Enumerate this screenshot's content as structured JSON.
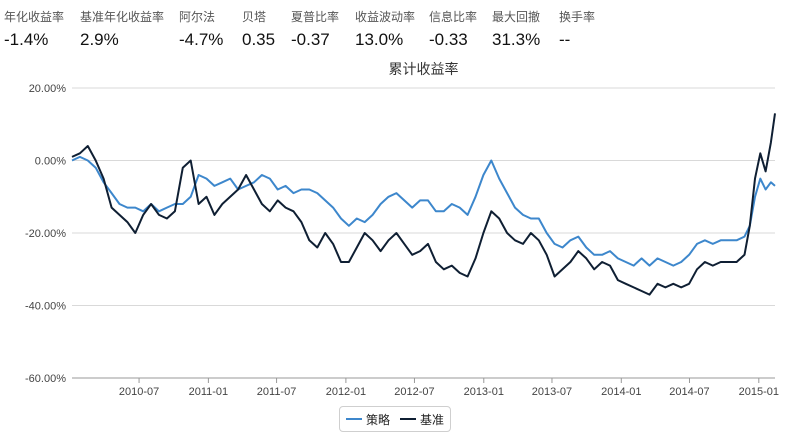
{
  "stats": [
    {
      "label": "年化收益率",
      "value": "-1.4%"
    },
    {
      "label": "基准年化收益率",
      "value": "2.9%"
    },
    {
      "label": "阿尔法",
      "value": "-4.7%"
    },
    {
      "label": "贝塔",
      "value": "0.35"
    },
    {
      "label": "夏普比率",
      "value": "-0.37"
    },
    {
      "label": "收益波动率",
      "value": "13.0%"
    },
    {
      "label": "信息比率",
      "value": "-0.33"
    },
    {
      "label": "最大回撤",
      "value": "31.3%"
    },
    {
      "label": "换手率",
      "value": "--"
    }
  ],
  "colors": {
    "strategy": "#3d87cc",
    "benchmark": "#0f1f33",
    "grid": "#d9d9d9",
    "axis": "#333333"
  },
  "chart_data": {
    "type": "line",
    "title": "累计收益率",
    "xlabel": "",
    "ylabel": "",
    "ylim": [
      -0.6,
      0.2
    ],
    "yticks": [
      0.2,
      0,
      -0.2,
      -0.4,
      -0.6
    ],
    "ytick_labels": [
      "20.00%",
      "0.00%",
      "-20.00%",
      "-40.00%",
      "-60.00%"
    ],
    "xlim": [
      "2010-01-04",
      "2015-02-13"
    ],
    "xtick_labels": [
      "2010-07",
      "2011-01",
      "2011-07",
      "2012-01",
      "2012-07",
      "2013-01",
      "2013-07",
      "2014-01",
      "2014-07",
      "2015-01"
    ],
    "grid": "horizontal",
    "legend_position": "bottom-center",
    "series": [
      {
        "name": "策略",
        "color": "#3d87cc",
        "points": [
          [
            "2010-01-04",
            0.0
          ],
          [
            "2010-01-25",
            0.01
          ],
          [
            "2010-02-15",
            0.0
          ],
          [
            "2010-03-08",
            -0.02
          ],
          [
            "2010-03-29",
            -0.06
          ],
          [
            "2010-04-19",
            -0.09
          ],
          [
            "2010-05-10",
            -0.12
          ],
          [
            "2010-05-31",
            -0.13
          ],
          [
            "2010-06-21",
            -0.13
          ],
          [
            "2010-07-12",
            -0.14
          ],
          [
            "2010-08-02",
            -0.12
          ],
          [
            "2010-08-23",
            -0.14
          ],
          [
            "2010-09-13",
            -0.13
          ],
          [
            "2010-10-04",
            -0.12
          ],
          [
            "2010-10-25",
            -0.12
          ],
          [
            "2010-11-15",
            -0.1
          ],
          [
            "2010-12-06",
            -0.04
          ],
          [
            "2010-12-27",
            -0.05
          ],
          [
            "2011-01-17",
            -0.07
          ],
          [
            "2011-02-07",
            -0.06
          ],
          [
            "2011-02-28",
            -0.05
          ],
          [
            "2011-03-21",
            -0.08
          ],
          [
            "2011-04-11",
            -0.07
          ],
          [
            "2011-05-02",
            -0.06
          ],
          [
            "2011-05-23",
            -0.04
          ],
          [
            "2011-06-13",
            -0.05
          ],
          [
            "2011-07-04",
            -0.08
          ],
          [
            "2011-07-25",
            -0.07
          ],
          [
            "2011-08-15",
            -0.09
          ],
          [
            "2011-09-05",
            -0.08
          ],
          [
            "2011-09-26",
            -0.08
          ],
          [
            "2011-10-17",
            -0.09
          ],
          [
            "2011-11-07",
            -0.11
          ],
          [
            "2011-11-28",
            -0.13
          ],
          [
            "2011-12-19",
            -0.16
          ],
          [
            "2012-01-09",
            -0.18
          ],
          [
            "2012-01-30",
            -0.16
          ],
          [
            "2012-02-20",
            -0.17
          ],
          [
            "2012-03-12",
            -0.15
          ],
          [
            "2012-04-02",
            -0.12
          ],
          [
            "2012-04-23",
            -0.1
          ],
          [
            "2012-05-14",
            -0.09
          ],
          [
            "2012-06-04",
            -0.11
          ],
          [
            "2012-06-25",
            -0.13
          ],
          [
            "2012-07-16",
            -0.11
          ],
          [
            "2012-08-06",
            -0.11
          ],
          [
            "2012-08-27",
            -0.14
          ],
          [
            "2012-09-17",
            -0.14
          ],
          [
            "2012-10-08",
            -0.12
          ],
          [
            "2012-10-29",
            -0.13
          ],
          [
            "2012-11-19",
            -0.15
          ],
          [
            "2012-12-10",
            -0.1
          ],
          [
            "2012-12-31",
            -0.04
          ],
          [
            "2013-01-21",
            0.0
          ],
          [
            "2013-02-11",
            -0.05
          ],
          [
            "2013-03-04",
            -0.09
          ],
          [
            "2013-03-25",
            -0.13
          ],
          [
            "2013-04-15",
            -0.15
          ],
          [
            "2013-05-06",
            -0.16
          ],
          [
            "2013-05-27",
            -0.16
          ],
          [
            "2013-06-17",
            -0.2
          ],
          [
            "2013-07-08",
            -0.23
          ],
          [
            "2013-07-29",
            -0.24
          ],
          [
            "2013-08-19",
            -0.22
          ],
          [
            "2013-09-09",
            -0.21
          ],
          [
            "2013-09-30",
            -0.24
          ],
          [
            "2013-10-21",
            -0.26
          ],
          [
            "2013-11-11",
            -0.26
          ],
          [
            "2013-12-02",
            -0.25
          ],
          [
            "2013-12-23",
            -0.27
          ],
          [
            "2014-01-13",
            -0.28
          ],
          [
            "2014-02-03",
            -0.29
          ],
          [
            "2014-02-24",
            -0.27
          ],
          [
            "2014-03-17",
            -0.29
          ],
          [
            "2014-04-07",
            -0.27
          ],
          [
            "2014-04-28",
            -0.28
          ],
          [
            "2014-05-19",
            -0.29
          ],
          [
            "2014-06-09",
            -0.28
          ],
          [
            "2014-06-30",
            -0.26
          ],
          [
            "2014-07-21",
            -0.23
          ],
          [
            "2014-08-11",
            -0.22
          ],
          [
            "2014-09-01",
            -0.23
          ],
          [
            "2014-09-22",
            -0.22
          ],
          [
            "2014-10-13",
            -0.22
          ],
          [
            "2014-11-03",
            -0.22
          ],
          [
            "2014-11-24",
            -0.21
          ],
          [
            "2014-12-08",
            -0.18
          ],
          [
            "2014-12-22",
            -0.1
          ],
          [
            "2015-01-05",
            -0.05
          ],
          [
            "2015-01-19",
            -0.08
          ],
          [
            "2015-02-02",
            -0.06
          ],
          [
            "2015-02-13",
            -0.07
          ]
        ]
      },
      {
        "name": "基准",
        "color": "#0f1f33",
        "points": [
          [
            "2010-01-04",
            0.01
          ],
          [
            "2010-01-25",
            0.02
          ],
          [
            "2010-02-15",
            0.04
          ],
          [
            "2010-03-08",
            0.0
          ],
          [
            "2010-03-29",
            -0.05
          ],
          [
            "2010-04-19",
            -0.13
          ],
          [
            "2010-05-10",
            -0.15
          ],
          [
            "2010-05-31",
            -0.17
          ],
          [
            "2010-06-21",
            -0.2
          ],
          [
            "2010-07-12",
            -0.15
          ],
          [
            "2010-08-02",
            -0.12
          ],
          [
            "2010-08-23",
            -0.15
          ],
          [
            "2010-09-13",
            -0.16
          ],
          [
            "2010-10-04",
            -0.14
          ],
          [
            "2010-10-25",
            -0.02
          ],
          [
            "2010-11-15",
            0.0
          ],
          [
            "2010-12-06",
            -0.12
          ],
          [
            "2010-12-27",
            -0.1
          ],
          [
            "2011-01-17",
            -0.15
          ],
          [
            "2011-02-07",
            -0.12
          ],
          [
            "2011-02-28",
            -0.1
          ],
          [
            "2011-03-21",
            -0.08
          ],
          [
            "2011-04-11",
            -0.04
          ],
          [
            "2011-05-02",
            -0.08
          ],
          [
            "2011-05-23",
            -0.12
          ],
          [
            "2011-06-13",
            -0.14
          ],
          [
            "2011-07-04",
            -0.11
          ],
          [
            "2011-07-25",
            -0.13
          ],
          [
            "2011-08-15",
            -0.14
          ],
          [
            "2011-09-05",
            -0.17
          ],
          [
            "2011-09-26",
            -0.22
          ],
          [
            "2011-10-17",
            -0.24
          ],
          [
            "2011-11-07",
            -0.2
          ],
          [
            "2011-11-28",
            -0.23
          ],
          [
            "2011-12-19",
            -0.28
          ],
          [
            "2012-01-09",
            -0.28
          ],
          [
            "2012-01-30",
            -0.24
          ],
          [
            "2012-02-20",
            -0.2
          ],
          [
            "2012-03-12",
            -0.22
          ],
          [
            "2012-04-02",
            -0.25
          ],
          [
            "2012-04-23",
            -0.22
          ],
          [
            "2012-05-14",
            -0.2
          ],
          [
            "2012-06-04",
            -0.23
          ],
          [
            "2012-06-25",
            -0.26
          ],
          [
            "2012-07-16",
            -0.25
          ],
          [
            "2012-08-06",
            -0.23
          ],
          [
            "2012-08-27",
            -0.28
          ],
          [
            "2012-09-17",
            -0.3
          ],
          [
            "2012-10-08",
            -0.29
          ],
          [
            "2012-10-29",
            -0.31
          ],
          [
            "2012-11-19",
            -0.32
          ],
          [
            "2012-12-10",
            -0.27
          ],
          [
            "2012-12-31",
            -0.2
          ],
          [
            "2013-01-21",
            -0.14
          ],
          [
            "2013-02-11",
            -0.16
          ],
          [
            "2013-03-04",
            -0.2
          ],
          [
            "2013-03-25",
            -0.22
          ],
          [
            "2013-04-15",
            -0.23
          ],
          [
            "2013-05-06",
            -0.2
          ],
          [
            "2013-05-27",
            -0.22
          ],
          [
            "2013-06-17",
            -0.26
          ],
          [
            "2013-07-08",
            -0.32
          ],
          [
            "2013-07-29",
            -0.3
          ],
          [
            "2013-08-19",
            -0.28
          ],
          [
            "2013-09-09",
            -0.25
          ],
          [
            "2013-09-30",
            -0.27
          ],
          [
            "2013-10-21",
            -0.3
          ],
          [
            "2013-11-11",
            -0.28
          ],
          [
            "2013-12-02",
            -0.29
          ],
          [
            "2013-12-23",
            -0.33
          ],
          [
            "2014-01-13",
            -0.34
          ],
          [
            "2014-02-03",
            -0.35
          ],
          [
            "2014-02-24",
            -0.36
          ],
          [
            "2014-03-17",
            -0.37
          ],
          [
            "2014-04-07",
            -0.34
          ],
          [
            "2014-04-28",
            -0.35
          ],
          [
            "2014-05-19",
            -0.34
          ],
          [
            "2014-06-09",
            -0.35
          ],
          [
            "2014-06-30",
            -0.34
          ],
          [
            "2014-07-21",
            -0.3
          ],
          [
            "2014-08-11",
            -0.28
          ],
          [
            "2014-09-01",
            -0.29
          ],
          [
            "2014-09-22",
            -0.28
          ],
          [
            "2014-10-13",
            -0.28
          ],
          [
            "2014-11-03",
            -0.28
          ],
          [
            "2014-11-24",
            -0.26
          ],
          [
            "2014-12-08",
            -0.18
          ],
          [
            "2014-12-22",
            -0.05
          ],
          [
            "2015-01-05",
            0.02
          ],
          [
            "2015-01-19",
            -0.03
          ],
          [
            "2015-02-02",
            0.05
          ],
          [
            "2015-02-13",
            0.13
          ]
        ]
      }
    ]
  }
}
